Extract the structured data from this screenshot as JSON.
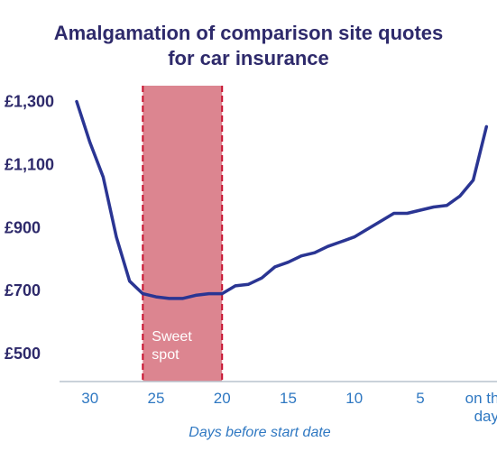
{
  "chart_data": {
    "type": "line",
    "title_lines": [
      "Amalgamation of comparison site quotes",
      "for car insurance"
    ],
    "xlabel": "Days before start date",
    "ylabel": "",
    "xlim": [
      32.3,
      -0.8
    ],
    "ylim": [
      420,
      1350
    ],
    "x_ticks": [
      {
        "value": 30,
        "label": [
          "30"
        ]
      },
      {
        "value": 25,
        "label": [
          "25"
        ]
      },
      {
        "value": 20,
        "label": [
          "20"
        ]
      },
      {
        "value": 15,
        "label": [
          "15"
        ]
      },
      {
        "value": 10,
        "label": [
          "10"
        ]
      },
      {
        "value": 5,
        "label": [
          "5"
        ]
      },
      {
        "value": 0,
        "label": [
          "on the",
          "day"
        ]
      }
    ],
    "y_ticks": [
      {
        "value": 500,
        "label": "£500"
      },
      {
        "value": 700,
        "label": "£700"
      },
      {
        "value": 900,
        "label": "£900"
      },
      {
        "value": 1100,
        "label": "£1,100"
      },
      {
        "value": 1300,
        "label": "£1,300"
      }
    ],
    "shaded_region": {
      "x_start": 26,
      "x_end": 20,
      "label": [
        "Sweet",
        "spot"
      ],
      "color": "#d46a78"
    },
    "series": [
      {
        "color": "#2a3593",
        "points": [
          [
            31,
            1300
          ],
          [
            30,
            1170
          ],
          [
            29,
            1060
          ],
          [
            28,
            870
          ],
          [
            27,
            730
          ],
          [
            26,
            690
          ],
          [
            25,
            680
          ],
          [
            24,
            675
          ],
          [
            23,
            675
          ],
          [
            22,
            685
          ],
          [
            21,
            690
          ],
          [
            20,
            690
          ],
          [
            19,
            715
          ],
          [
            18,
            720
          ],
          [
            17,
            740
          ],
          [
            16,
            775
          ],
          [
            15,
            790
          ],
          [
            14,
            810
          ],
          [
            13,
            820
          ],
          [
            12,
            840
          ],
          [
            11,
            855
          ],
          [
            10,
            870
          ],
          [
            9,
            895
          ],
          [
            8,
            920
          ],
          [
            7,
            945
          ],
          [
            6,
            945
          ],
          [
            5,
            955
          ],
          [
            4,
            965
          ],
          [
            3,
            970
          ],
          [
            2,
            1000
          ],
          [
            1,
            1050
          ],
          [
            0,
            1220
          ]
        ]
      }
    ]
  }
}
